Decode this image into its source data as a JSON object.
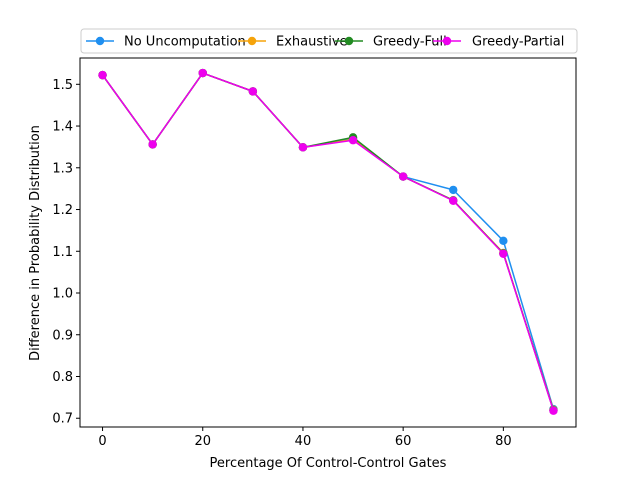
{
  "chart_data": {
    "type": "line",
    "xlabel": "Percentage Of Control-Control Gates",
    "ylabel": "Difference in Probability Distribution",
    "xlim": [
      -4.5,
      94.5
    ],
    "ylim": [
      0.679,
      1.563
    ],
    "xticks": [
      0,
      20,
      40,
      60,
      80
    ],
    "yticks": [
      0.7,
      0.8,
      0.9,
      1.0,
      1.1,
      1.2,
      1.3,
      1.4,
      1.5
    ],
    "ytick_labels": [
      "0.7",
      "0.8",
      "0.9",
      "1.0",
      "1.1",
      "1.2",
      "1.3",
      "1.4",
      "1.5"
    ],
    "grid": false,
    "legend_position": "top-center",
    "x": [
      0,
      10,
      20,
      30,
      40,
      50,
      60,
      70,
      80,
      90
    ],
    "series": [
      {
        "name": "No Uncomputation",
        "color": "#1f8ff0",
        "values": [
          1.522,
          1.356,
          1.527,
          1.483,
          1.349,
          1.37,
          1.279,
          1.247,
          1.125,
          0.722
        ]
      },
      {
        "name": "Exhaustive",
        "color": "#f5a30a",
        "values": [
          1.522,
          1.356,
          1.527,
          1.483,
          1.349,
          1.368,
          1.279,
          1.222,
          1.096,
          0.72
        ]
      },
      {
        "name": "Greedy-Full",
        "color": "#228b22",
        "values": [
          1.522,
          1.356,
          1.527,
          1.483,
          1.349,
          1.373,
          1.279,
          1.222,
          1.095,
          0.719
        ]
      },
      {
        "name": "Greedy-Partial",
        "color": "#ee00ee",
        "values": [
          1.522,
          1.356,
          1.527,
          1.483,
          1.349,
          1.366,
          1.279,
          1.221,
          1.094,
          0.718
        ]
      }
    ]
  }
}
